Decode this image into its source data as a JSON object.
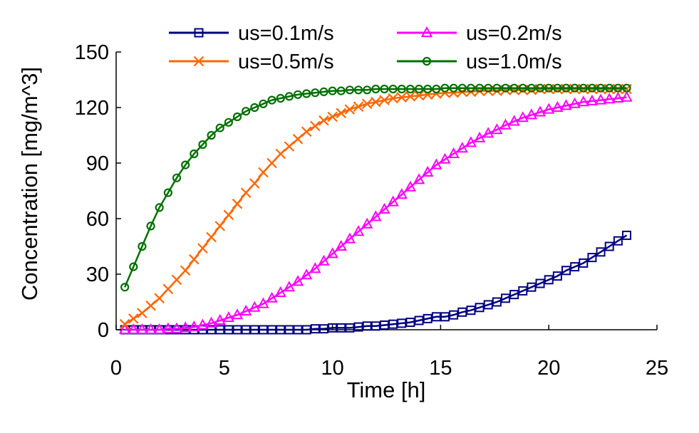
{
  "chart_data": {
    "type": "line",
    "title": "",
    "xlabel": "Time [h]",
    "ylabel": "Concentration [mg/m^3]",
    "xlim": [
      0,
      25
    ],
    "ylim": [
      0,
      150
    ],
    "x_ticks": [
      0,
      5,
      10,
      15,
      20,
      25
    ],
    "y_ticks": [
      0,
      30,
      60,
      90,
      120,
      150
    ],
    "grid": false,
    "legend_position": "top",
    "x": [
      0.4,
      0.8,
      1.2,
      1.6,
      2.0,
      2.4,
      2.8,
      3.2,
      3.6,
      4.0,
      4.4,
      4.8,
      5.2,
      5.6,
      6.0,
      6.4,
      6.8,
      7.2,
      7.6,
      8.0,
      8.4,
      8.8,
      9.2,
      9.6,
      10.0,
      10.4,
      10.8,
      11.2,
      11.6,
      12.0,
      12.4,
      12.8,
      13.2,
      13.6,
      14.0,
      14.4,
      14.8,
      15.2,
      15.6,
      16.0,
      16.4,
      16.8,
      17.2,
      17.6,
      18.0,
      18.4,
      18.8,
      19.2,
      19.6,
      20.0,
      20.4,
      20.8,
      21.2,
      21.6,
      22.0,
      22.4,
      22.8,
      23.2,
      23.6
    ],
    "series": [
      {
        "name": "us=0.1m/s",
        "color": "#000080",
        "marker": "square",
        "values": [
          0,
          0,
          0,
          0,
          0,
          0,
          0,
          0,
          0,
          0,
          0,
          0,
          0,
          0,
          0,
          0,
          0,
          0,
          0,
          0,
          0,
          0,
          0.5,
          0.5,
          1,
          1,
          1,
          1.5,
          2,
          2,
          2.5,
          3,
          3.5,
          4,
          5,
          6,
          7,
          7,
          8,
          9.5,
          10.5,
          12,
          13.5,
          15,
          17,
          19,
          21,
          23,
          25,
          27,
          29,
          32,
          34,
          36,
          39,
          42,
          45,
          48,
          51
        ]
      },
      {
        "name": "us=0.2m/s",
        "color": "#ff00ff",
        "marker": "triangle",
        "values": [
          0,
          0,
          0,
          0,
          0,
          0.5,
          0.5,
          1,
          1.5,
          2.5,
          3.5,
          5,
          6.5,
          8,
          10,
          12,
          14,
          17,
          20,
          23,
          26,
          29.5,
          33,
          37,
          41,
          45,
          49,
          53,
          57,
          61,
          65,
          69,
          73,
          77,
          81,
          85,
          89,
          92,
          95,
          98,
          101,
          103.5,
          106,
          108,
          110.5,
          112.5,
          114.5,
          116,
          117.5,
          119,
          120,
          121,
          122,
          123,
          123.5,
          124,
          124.5,
          125,
          125.5
        ]
      },
      {
        "name": "us=0.5m/s",
        "color": "#ff6600",
        "marker": "x",
        "values": [
          3,
          6,
          9,
          13,
          17,
          22,
          27,
          32,
          38,
          44,
          50,
          56,
          62,
          68,
          74,
          79,
          85,
          90,
          95,
          99,
          103,
          107,
          110,
          113,
          115,
          117,
          119,
          120.5,
          122,
          123,
          124,
          125,
          125.5,
          126,
          126.5,
          127,
          127.5,
          128,
          128,
          128.5,
          128.5,
          129,
          129,
          129,
          129.5,
          129.5,
          129.5,
          129.5,
          130,
          130,
          130,
          130,
          130,
          130,
          130,
          130,
          130,
          130,
          130
        ]
      },
      {
        "name": "us=1.0m/s",
        "color": "#007000",
        "marker": "circle",
        "values": [
          23,
          34,
          45,
          56,
          66,
          74,
          82,
          89,
          95,
          100,
          105,
          109,
          112,
          115,
          118,
          120,
          122,
          124,
          125,
          126,
          127,
          127.5,
          128,
          128.5,
          129,
          129,
          129.5,
          129.5,
          129.5,
          130,
          130,
          130,
          130,
          130,
          130,
          130,
          130,
          130.5,
          130.5,
          130.5,
          130.5,
          130.5,
          130.5,
          130.5,
          130.5,
          130.5,
          130.5,
          130.5,
          130.5,
          130.5,
          130.5,
          130.5,
          130.5,
          130.5,
          130.5,
          130.5,
          130.5,
          130.5,
          130.5
        ]
      }
    ]
  }
}
